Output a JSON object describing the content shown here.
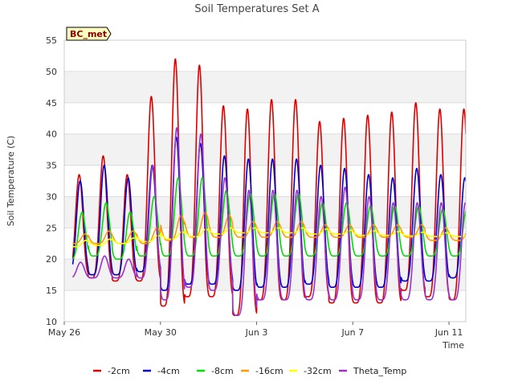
{
  "chart_data": {
    "type": "line",
    "title": "Soil Temperatures Set A",
    "xlabel": "Time",
    "ylabel": "Soil Temperature (C)",
    "station_badge": "BC_met",
    "ylim": [
      10,
      55
    ],
    "yticks": [
      10,
      15,
      20,
      25,
      30,
      35,
      40,
      45,
      50,
      55
    ],
    "xlim_days": [
      0,
      16.7
    ],
    "xticks": [
      {
        "label": "May 26",
        "day": 0
      },
      {
        "label": "May 30",
        "day": 4
      },
      {
        "label": "Jun 3",
        "day": 8
      },
      {
        "label": "Jun 7",
        "day": 12
      },
      {
        "label": "Jun 11",
        "day": 16
      }
    ],
    "grid": true,
    "legend_placement": "bottom",
    "series": [
      {
        "name": "-2cm",
        "color": "#dd0000",
        "phase": 0.62,
        "mins": [
          17.5,
          17,
          16.5,
          16.5,
          12.5,
          14,
          14,
          11,
          13.5,
          13.5,
          14,
          13,
          13,
          13,
          15,
          14,
          13.5,
          13.5
        ],
        "maxs": [
          33.5,
          36.5,
          33.5,
          46,
          52,
          51,
          44.5,
          44,
          45.5,
          45.5,
          42,
          42.5,
          43,
          43.5,
          45,
          44,
          44,
          44
        ]
      },
      {
        "name": "-4cm",
        "color": "#0000cc",
        "phase": 0.66,
        "mins": [
          18,
          17.5,
          17.5,
          18,
          15,
          16,
          16,
          15,
          15.5,
          15.5,
          16,
          15.5,
          15.5,
          15.5,
          16.5,
          16.5,
          17,
          17
        ],
        "maxs": [
          32.5,
          35,
          33,
          35,
          39.5,
          38.5,
          36.5,
          36,
          36,
          36,
          35,
          34.5,
          33.5,
          33,
          34.5,
          33.5,
          33,
          33
        ]
      },
      {
        "name": "-8cm",
        "color": "#00dd00",
        "phase": 0.74,
        "mins": [
          20,
          20.5,
          20,
          20.5,
          20.5,
          20.5,
          20.5,
          20.5,
          20.5,
          20.5,
          20.5,
          20.5,
          20.5,
          20.5,
          20.5,
          20.5,
          20.5,
          20.5
        ],
        "maxs": [
          27.5,
          29,
          27.5,
          30,
          33,
          33,
          31,
          30.5,
          30.5,
          30.5,
          29,
          29,
          28.5,
          28.5,
          28.5,
          28,
          28,
          28
        ]
      },
      {
        "name": "-16cm",
        "color": "#ff9900",
        "phase": 0.86,
        "mins": [
          22.5,
          22.5,
          22.5,
          22.5,
          23,
          23.5,
          23.5,
          23.5,
          23.5,
          23.5,
          23.5,
          23.5,
          23.5,
          23.5,
          23.5,
          23,
          23,
          23
        ],
        "maxs": [
          24,
          24.5,
          24.5,
          25,
          27,
          27.5,
          27,
          26,
          26,
          26,
          25.5,
          25.5,
          25.5,
          25.5,
          25.5,
          25,
          25,
          25
        ]
      },
      {
        "name": "-32cm",
        "color": "#ffff00",
        "phase": 0.9,
        "mins": [
          22,
          22.2,
          22.5,
          22.8,
          23.2,
          23.6,
          24,
          24.2,
          24.2,
          24.2,
          24,
          24,
          23.8,
          23.8,
          23.7,
          23.6,
          23.6,
          23.6
        ],
        "maxs": [
          23,
          23.2,
          23.4,
          23.8,
          24.4,
          24.8,
          25,
          25,
          25,
          25,
          24.8,
          24.6,
          24.5,
          24.4,
          24.3,
          24.2,
          24.2,
          24.2
        ]
      },
      {
        "name": "Theta_Temp",
        "color": "#9933cc",
        "phase": 0.68,
        "mins": [
          17,
          17,
          17,
          17,
          13.5,
          15.5,
          15,
          11,
          13.5,
          13.5,
          13.5,
          13.5,
          13.5,
          13.5,
          13.5,
          13.5,
          13.5,
          12
        ],
        "maxs": [
          19.5,
          20.5,
          20,
          35,
          41,
          40,
          33,
          31,
          31,
          31,
          30,
          31.5,
          30,
          29,
          29,
          29,
          29,
          29
        ]
      }
    ]
  }
}
